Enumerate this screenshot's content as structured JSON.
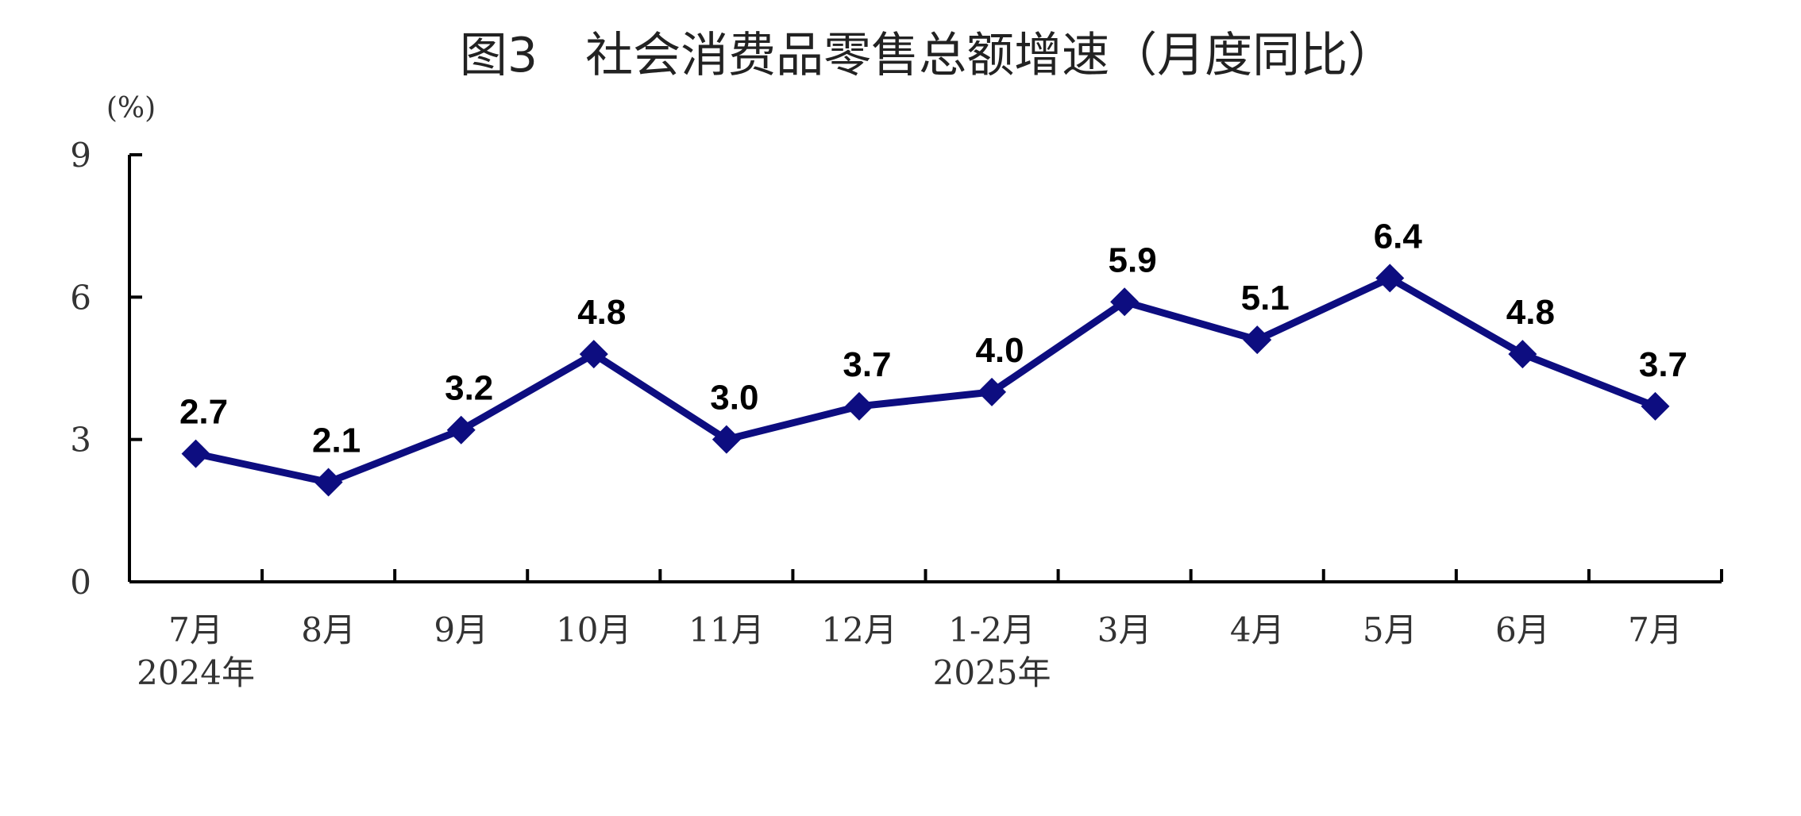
{
  "chart_data": {
    "type": "line",
    "title": "图3　社会消费品零售总额增速（月度同比）",
    "unit_label": "(%)",
    "categories": [
      "7月",
      "8月",
      "9月",
      "10月",
      "11月",
      "12月",
      "1-2月",
      "3月",
      "4月",
      "5月",
      "6月",
      "7月"
    ],
    "year_labels": [
      {
        "text": "2024年",
        "category_index": 0
      },
      {
        "text": "2025年",
        "category_index": 6
      }
    ],
    "series": [
      {
        "values": [
          2.7,
          2.1,
          3.2,
          4.8,
          3.0,
          3.7,
          4.0,
          5.9,
          5.1,
          6.4,
          4.8,
          3.7
        ]
      }
    ],
    "data_labels": [
      "2.7",
      "2.1",
      "3.2",
      "4.8",
      "3.0",
      "3.7",
      "4.0",
      "5.9",
      "5.1",
      "6.4",
      "4.8",
      "3.7"
    ],
    "ylim": [
      0,
      9
    ],
    "yticks": [
      0,
      3,
      6,
      9
    ],
    "ytick_labels": [
      "0",
      "3",
      "6",
      "9"
    ],
    "grid": false,
    "legend": "none",
    "line_color": "#0d0d80",
    "axis_color": "#000000"
  }
}
